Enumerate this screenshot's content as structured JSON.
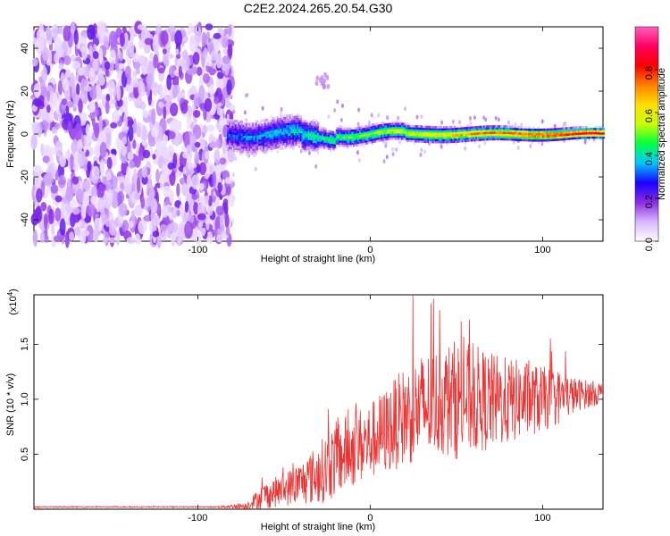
{
  "title": "C2E2.2024.265.20.54.G30",
  "chart_data": [
    {
      "type": "heatmap",
      "xlabel": "Height of straight line (km)",
      "ylabel": "Frequency (Hz)",
      "xlim": [
        -195,
        135
      ],
      "ylim": [
        -50,
        50
      ],
      "xticks": [
        -100,
        0,
        100
      ],
      "yticks": [
        -40,
        -20,
        0,
        20,
        40
      ],
      "colorbar": {
        "label": "Normalized spectral amplitude",
        "range": [
          0,
          1
        ],
        "ticks": [
          "0.0",
          "0.2",
          "0.4",
          "0.6",
          "0.8"
        ],
        "tick_values": [
          0,
          0.2,
          0.4,
          0.6,
          0.8
        ],
        "colors": [
          "#ffffff",
          "#d9b8ff",
          "#8a2be2",
          "#1a00ff",
          "#00c8ff",
          "#00ff44",
          "#c8ff00",
          "#ffe000",
          "#ff8000",
          "#ff0000",
          "#ff0060",
          "#ff60c0"
        ]
      },
      "description_values": {
        "noise_region_x": [
          -195,
          -83
        ],
        "signal_start_x": -83,
        "signal_center_freq": 0
      }
    },
    {
      "type": "line",
      "xlabel": "Height of straight line (km)",
      "ylabel": "SNR (10 * v/v)",
      "scale_label": "(x10",
      "scale_exponent": "4",
      "scale_suffix": ")",
      "xlim": [
        -195,
        135
      ],
      "ylim": [
        0,
        1.95
      ],
      "xticks": [
        -100,
        0,
        100
      ],
      "yticks": [
        "0.5",
        "1.0",
        "1.5"
      ],
      "ytick_values": [
        0.5,
        1.0,
        1.5
      ],
      "color": "#ee3333",
      "envelope": {
        "x": [
          -195,
          -90,
          -72,
          -62,
          -50,
          -40,
          -30,
          -20,
          -10,
          0,
          10,
          20,
          30,
          40,
          50,
          60,
          70,
          80,
          90,
          100,
          110,
          120,
          135
        ],
        "mean": [
          0.02,
          0.02,
          0.03,
          0.12,
          0.18,
          0.24,
          0.32,
          0.45,
          0.55,
          0.62,
          0.72,
          0.85,
          0.92,
          0.98,
          1.0,
          1.0,
          0.98,
          0.98,
          1.0,
          1.0,
          1.02,
          1.04,
          1.06
        ],
        "amp": [
          0.005,
          0.005,
          0.03,
          0.12,
          0.15,
          0.2,
          0.28,
          0.35,
          0.35,
          0.35,
          0.4,
          0.45,
          0.5,
          0.5,
          0.55,
          0.5,
          0.45,
          0.4,
          0.35,
          0.3,
          0.25,
          0.15,
          0.1
        ]
      }
    }
  ]
}
